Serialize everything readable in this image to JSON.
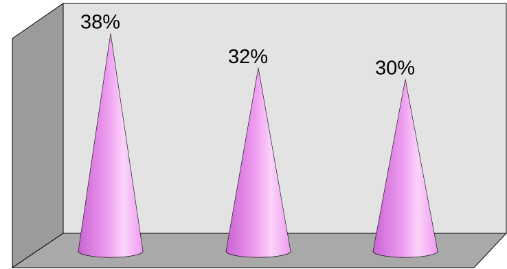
{
  "chart_data": {
    "type": "bar",
    "shape": "cone",
    "three_d": true,
    "categories": [
      "",
      "",
      ""
    ],
    "values": [
      38,
      32,
      30
    ],
    "data_labels": [
      "38%",
      "32%",
      "30%"
    ],
    "unit": "%",
    "title": "",
    "xlabel": "",
    "ylabel": "",
    "ylim": [
      0,
      40
    ],
    "grid": false,
    "legend": "none",
    "colors": {
      "cone_light": "#fbd3fb",
      "cone_mid": "#ee9cf0",
      "cone_dark": "#c964d2",
      "wall_back": "#e3e3e3",
      "wall_side": "#9b9b9b",
      "floor": "#a9a9a9",
      "frame": "#000000"
    }
  }
}
